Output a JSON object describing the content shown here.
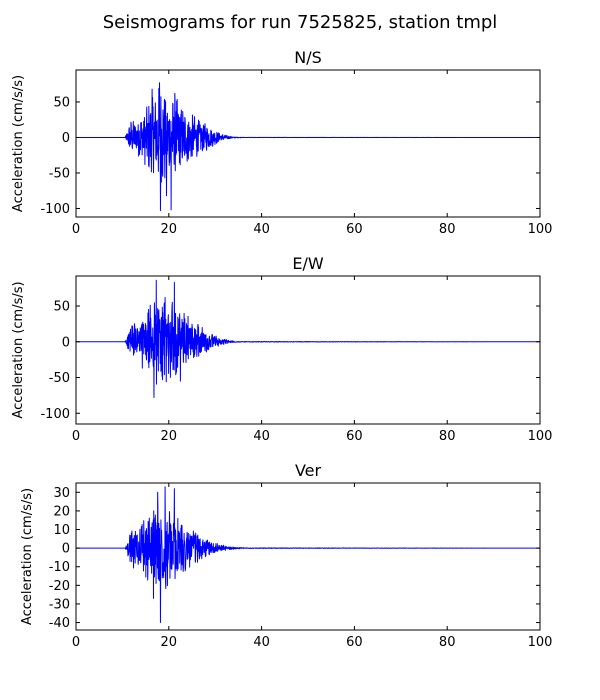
{
  "figure": {
    "title": "Seismograms for run 7525825, station tmpl"
  },
  "chart_data": [
    {
      "type": "line",
      "title": "N/S",
      "ylabel": "Acceleration (cm/s/s)",
      "xlabel": "",
      "xlim": [
        0,
        100
      ],
      "ylim": [
        -112,
        95
      ],
      "xticks": [
        0,
        20,
        40,
        60,
        80,
        100
      ],
      "yticks": [
        -100,
        -50,
        0,
        50
      ],
      "grid": false,
      "color": "#0000ff",
      "envelope": [
        [
          0,
          0
        ],
        [
          10.5,
          0
        ],
        [
          11,
          8
        ],
        [
          11.5,
          20
        ],
        [
          12,
          28
        ],
        [
          13,
          22
        ],
        [
          14,
          35
        ],
        [
          15,
          40
        ],
        [
          16,
          55
        ],
        [
          17,
          65
        ],
        [
          18,
          75
        ],
        [
          19,
          72
        ],
        [
          20,
          60
        ],
        [
          21,
          55
        ],
        [
          22,
          58
        ],
        [
          23,
          45
        ],
        [
          24,
          40
        ],
        [
          25,
          35
        ],
        [
          26,
          30
        ],
        [
          27,
          22
        ],
        [
          28,
          20
        ],
        [
          29,
          15
        ],
        [
          30,
          10
        ],
        [
          31,
          7
        ],
        [
          32,
          4
        ],
        [
          33,
          2
        ],
        [
          34,
          1
        ],
        [
          35,
          0.5
        ],
        [
          36,
          0.2
        ],
        [
          100,
          0
        ]
      ],
      "peaks": [
        {
          "x": 18.0,
          "y": 77
        },
        {
          "x": 18.2,
          "y": -103
        },
        {
          "x": 20.5,
          "y": -102
        },
        {
          "x": 16.4,
          "y": 68
        },
        {
          "x": 19.5,
          "y": -82
        },
        {
          "x": 21.3,
          "y": 62
        }
      ]
    },
    {
      "type": "line",
      "title": "E/W",
      "ylabel": "Acceleration (cm/s/s)",
      "xlabel": "",
      "xlim": [
        0,
        100
      ],
      "ylim": [
        -115,
        92
      ],
      "xticks": [
        0,
        20,
        40,
        60,
        80,
        100
      ],
      "yticks": [
        -100,
        -50,
        0,
        50
      ],
      "grid": false,
      "color": "#0000ff",
      "envelope": [
        [
          0,
          0
        ],
        [
          10.5,
          0
        ],
        [
          11,
          8
        ],
        [
          11.5,
          18
        ],
        [
          12,
          24
        ],
        [
          13,
          28
        ],
        [
          14,
          35
        ],
        [
          15,
          45
        ],
        [
          16,
          55
        ],
        [
          17,
          62
        ],
        [
          18,
          65
        ],
        [
          19,
          62
        ],
        [
          20,
          58
        ],
        [
          21,
          55
        ],
        [
          22,
          50
        ],
        [
          23,
          42
        ],
        [
          24,
          38
        ],
        [
          25,
          32
        ],
        [
          26,
          28
        ],
        [
          27,
          22
        ],
        [
          28,
          18
        ],
        [
          29,
          12
        ],
        [
          30,
          9
        ],
        [
          31,
          6
        ],
        [
          32,
          4
        ],
        [
          33,
          2
        ],
        [
          34,
          1
        ],
        [
          35,
          0.5
        ],
        [
          100,
          0
        ]
      ],
      "peaks": [
        {
          "x": 17.3,
          "y": 86
        },
        {
          "x": 21.2,
          "y": 83
        },
        {
          "x": 16.8,
          "y": -78
        },
        {
          "x": 19.2,
          "y": 62
        },
        {
          "x": 22.5,
          "y": -55
        }
      ]
    },
    {
      "type": "line",
      "title": "Ver",
      "ylabel": "Acceleration (cm/s/s)",
      "xlabel": "",
      "xlim": [
        0,
        100
      ],
      "ylim": [
        -44,
        35
      ],
      "xticks": [
        0,
        20,
        40,
        60,
        80,
        100
      ],
      "yticks": [
        -40,
        -30,
        -20,
        -10,
        0,
        10,
        20,
        30
      ],
      "grid": false,
      "color": "#0000ff",
      "envelope": [
        [
          0,
          0
        ],
        [
          10.5,
          0
        ],
        [
          11,
          3
        ],
        [
          11.5,
          8
        ],
        [
          12,
          10
        ],
        [
          13,
          12
        ],
        [
          14,
          14
        ],
        [
          15,
          17
        ],
        [
          16,
          20
        ],
        [
          17,
          24
        ],
        [
          18,
          26
        ],
        [
          19,
          24
        ],
        [
          20,
          22
        ],
        [
          21,
          20
        ],
        [
          22,
          17
        ],
        [
          23,
          15
        ],
        [
          24,
          12
        ],
        [
          25,
          10
        ],
        [
          26,
          8
        ],
        [
          27,
          6
        ],
        [
          28,
          5
        ],
        [
          29,
          4
        ],
        [
          30,
          3
        ],
        [
          31,
          2
        ],
        [
          32,
          1.5
        ],
        [
          33,
          1
        ],
        [
          34,
          0.6
        ],
        [
          35,
          0.4
        ],
        [
          36,
          0.2
        ],
        [
          100,
          0
        ]
      ],
      "peaks": [
        {
          "x": 18.2,
          "y": -40
        },
        {
          "x": 19.2,
          "y": 33
        },
        {
          "x": 21.2,
          "y": 32
        },
        {
          "x": 16.7,
          "y": -27
        },
        {
          "x": 17.6,
          "y": 30
        }
      ]
    }
  ]
}
